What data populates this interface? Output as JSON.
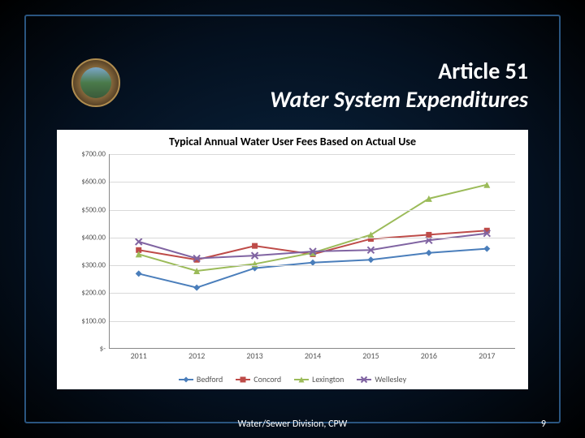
{
  "slide": {
    "title_line1": "Article 51",
    "title_line2": "Water System Expenditures",
    "footer_text": "Water/Sewer Division, CPW",
    "page_number": "9"
  },
  "chart": {
    "type": "line",
    "title": "Typical Annual Water User Fees Based on Actual Use",
    "title_fontsize": 14,
    "background_color": "#ffffff",
    "grid_color": "#d9d9d9",
    "axis_color": "#888888",
    "label_color": "#555555",
    "label_fontsize": 10,
    "x": {
      "categories": [
        "2011",
        "2012",
        "2013",
        "2014",
        "2015",
        "2016",
        "2017"
      ]
    },
    "y": {
      "min": 0,
      "max": 700,
      "tick_step": 100,
      "tick_labels": [
        "$-",
        "$100.00",
        "$200.00",
        "$300.00",
        "$400.00",
        "$500.00",
        "$600.00",
        "$700.00"
      ]
    },
    "series": [
      {
        "name": "Bedford",
        "color": "#4a7ebb",
        "marker": "diamond",
        "marker_size": 8,
        "line_width": 2,
        "values": [
          270,
          220,
          290,
          310,
          320,
          345,
          360
        ]
      },
      {
        "name": "Concord",
        "color": "#be4b48",
        "marker": "square",
        "marker_size": 7,
        "line_width": 2,
        "values": [
          355,
          320,
          370,
          340,
          395,
          410,
          425
        ]
      },
      {
        "name": "Lexington",
        "color": "#9bbb59",
        "marker": "triangle",
        "marker_size": 8,
        "line_width": 2,
        "values": [
          340,
          280,
          305,
          345,
          410,
          540,
          590
        ]
      },
      {
        "name": "Wellesley",
        "color": "#8064a2",
        "marker": "x",
        "marker_size": 8,
        "line_width": 2,
        "values": [
          385,
          325,
          335,
          350,
          355,
          390,
          415
        ]
      }
    ],
    "legend_position": "bottom"
  }
}
